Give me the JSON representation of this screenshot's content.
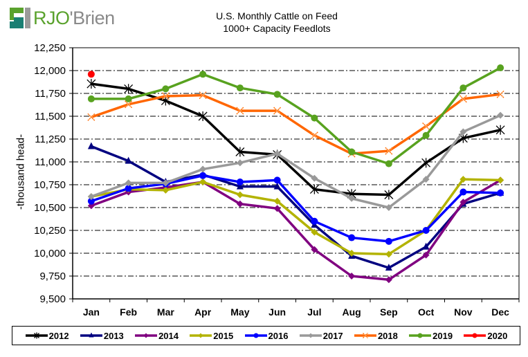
{
  "logo": {
    "text_a": "RJO",
    "text_apos": "'",
    "text_b": "Brien"
  },
  "chart_data": {
    "type": "line",
    "title": "U.S. Monthly Cattle on Feed",
    "subtitle": "1000+ Capacity Feedlots",
    "xlabel": "",
    "ylabel": "-thousand head-",
    "ylim": [
      9500,
      12250
    ],
    "yticks": [
      9500,
      9750,
      10000,
      10250,
      10500,
      10750,
      11000,
      11250,
      11500,
      11750,
      12000,
      12250
    ],
    "ytick_labels": [
      "9,500",
      "9,750",
      "10,000",
      "10,250",
      "10,500",
      "10,750",
      "11,000",
      "11,250",
      "11,500",
      "11,750",
      "12,000",
      "12,250"
    ],
    "categories": [
      "Jan",
      "Feb",
      "Mar",
      "Apr",
      "May",
      "Jun",
      "Jul",
      "Aug",
      "Sep",
      "Oct",
      "Nov",
      "Dec"
    ],
    "grid": true,
    "legend_position": "bottom",
    "series": [
      {
        "name": "2012",
        "color": "#000000",
        "marker": "star",
        "values": [
          11855,
          11800,
          11670,
          11500,
          11110,
          11080,
          10700,
          10650,
          10640,
          10990,
          11260,
          11350
        ]
      },
      {
        "name": "2013",
        "color": "#000080",
        "marker": "triangle",
        "values": [
          11170,
          11010,
          10780,
          10860,
          10730,
          10730,
          10310,
          9970,
          9840,
          10070,
          10540,
          10660
        ]
      },
      {
        "name": "2014",
        "color": "#800080",
        "marker": "diamond",
        "values": [
          10520,
          10670,
          10720,
          10780,
          10540,
          10490,
          10040,
          9750,
          9710,
          9980,
          10560,
          10800
        ]
      },
      {
        "name": "2015",
        "color": "#b3b300",
        "marker": "diamond",
        "values": [
          10620,
          10700,
          10690,
          10780,
          10640,
          10570,
          10230,
          10000,
          9990,
          10250,
          10810,
          10800
        ]
      },
      {
        "name": "2016",
        "color": "#0000ff",
        "marker": "circle",
        "values": [
          10570,
          10710,
          10760,
          10850,
          10780,
          10800,
          10350,
          10170,
          10130,
          10250,
          10670,
          10660
        ]
      },
      {
        "name": "2017",
        "color": "#999999",
        "marker": "diamond",
        "values": [
          10620,
          10770,
          10770,
          10920,
          10990,
          11090,
          10820,
          10600,
          10500,
          10810,
          11330,
          11510
        ]
      },
      {
        "name": "2018",
        "color": "#ff6600",
        "marker": "x",
        "values": [
          11490,
          11630,
          11720,
          11730,
          11560,
          11560,
          11290,
          11090,
          11120,
          11390,
          11690,
          11740
        ]
      },
      {
        "name": "2019",
        "color": "#58a21f",
        "marker": "circle",
        "values": [
          11690,
          11690,
          11800,
          11960,
          11810,
          11740,
          11480,
          11110,
          10980,
          11290,
          11810,
          12030
        ]
      },
      {
        "name": "2020",
        "color": "#ff0000",
        "marker": "circle",
        "values": [
          11960,
          null,
          null,
          null,
          null,
          null,
          null,
          null,
          null,
          null,
          null,
          null
        ]
      }
    ]
  }
}
